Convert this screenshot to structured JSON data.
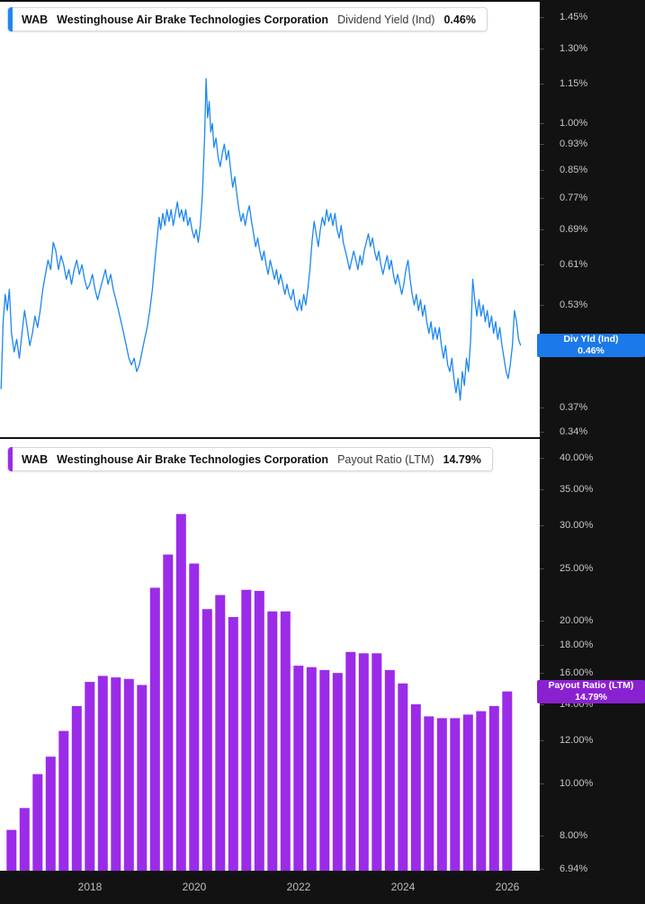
{
  "colors": {
    "background": "#121212",
    "panel": "#ffffff",
    "axis_text": "#c7c7c7",
    "x_axis_text": "#bdbdbd",
    "line_blue": "#1e87f0",
    "badge_blue": "#1b79ea",
    "bar_purple": "#9b2be8",
    "badge_purple": "#8a21d1",
    "chip_border": "#d8d8d8",
    "chip_text": "#111111"
  },
  "header_chips": {
    "dividend_yield": {
      "ticker": "WAB",
      "company": "Westinghouse Air Brake Technologies Corporation",
      "metric": "Dividend Yield (Ind)",
      "value": "0.46%"
    },
    "payout_ratio": {
      "ticker": "WAB",
      "company": "Westinghouse Air Brake Technologies Corporation",
      "metric": "Payout Ratio (LTM)",
      "value": "14.79%"
    }
  },
  "badges": {
    "dividend_yield": {
      "line1": "Div Yld (Ind)",
      "line2": "0.46%"
    },
    "payout_ratio": {
      "line1": "Payout Ratio (LTM)",
      "line2": "14.79%"
    }
  },
  "chart_data": [
    {
      "type": "line",
      "title": "WAB Westinghouse Air Brake Technologies Corporation Dividend Yield (Ind) 0.46%",
      "name": "Dividend Yield (Ind)",
      "unit": "%",
      "y_scale": "log",
      "current_value": 0.46,
      "y_ticks": [
        {
          "label": "1.45%",
          "v": 1.45
        },
        {
          "label": "1.30%",
          "v": 1.3
        },
        {
          "label": "1.15%",
          "v": 1.15
        },
        {
          "label": "1.00%",
          "v": 1.0
        },
        {
          "label": "0.93%",
          "v": 0.93
        },
        {
          "label": "0.85%",
          "v": 0.85
        },
        {
          "label": "0.77%",
          "v": 0.77
        },
        {
          "label": "0.69%",
          "v": 0.69
        },
        {
          "label": "0.61%",
          "v": 0.61
        },
        {
          "label": "0.53%",
          "v": 0.53
        },
        {
          "label": "0.37%",
          "v": 0.37
        },
        {
          "label": "0.34%",
          "v": 0.34
        }
      ],
      "x_ticks": [
        {
          "label": "2018",
          "t": 2018
        },
        {
          "label": "2020",
          "t": 2020
        },
        {
          "label": "2022",
          "t": 2022
        },
        {
          "label": "2024",
          "t": 2024
        },
        {
          "label": "2026",
          "t": 2026
        }
      ],
      "points": [
        [
          2016.3,
          0.395
        ],
        [
          2016.34,
          0.5
        ],
        [
          2016.38,
          0.55
        ],
        [
          2016.42,
          0.52
        ],
        [
          2016.46,
          0.56
        ],
        [
          2016.5,
          0.48
        ],
        [
          2016.55,
          0.45
        ],
        [
          2016.6,
          0.47
        ],
        [
          2016.65,
          0.44
        ],
        [
          2016.7,
          0.48
        ],
        [
          2016.75,
          0.52
        ],
        [
          2016.8,
          0.49
        ],
        [
          2016.85,
          0.46
        ],
        [
          2016.9,
          0.48
        ],
        [
          2016.95,
          0.51
        ],
        [
          2017.0,
          0.49
        ],
        [
          2017.05,
          0.52
        ],
        [
          2017.1,
          0.56
        ],
        [
          2017.15,
          0.59
        ],
        [
          2017.2,
          0.62
        ],
        [
          2017.25,
          0.6
        ],
        [
          2017.3,
          0.66
        ],
        [
          2017.35,
          0.64
        ],
        [
          2017.4,
          0.6
        ],
        [
          2017.45,
          0.63
        ],
        [
          2017.5,
          0.61
        ],
        [
          2017.55,
          0.58
        ],
        [
          2017.6,
          0.6
        ],
        [
          2017.65,
          0.57
        ],
        [
          2017.7,
          0.6
        ],
        [
          2017.75,
          0.62
        ],
        [
          2017.8,
          0.59
        ],
        [
          2017.85,
          0.61
        ],
        [
          2017.9,
          0.58
        ],
        [
          2017.95,
          0.56
        ],
        [
          2018.0,
          0.57
        ],
        [
          2018.05,
          0.59
        ],
        [
          2018.1,
          0.56
        ],
        [
          2018.15,
          0.54
        ],
        [
          2018.2,
          0.56
        ],
        [
          2018.25,
          0.58
        ],
        [
          2018.3,
          0.6
        ],
        [
          2018.35,
          0.57
        ],
        [
          2018.4,
          0.59
        ],
        [
          2018.45,
          0.56
        ],
        [
          2018.5,
          0.54
        ],
        [
          2018.55,
          0.52
        ],
        [
          2018.6,
          0.5
        ],
        [
          2018.65,
          0.48
        ],
        [
          2018.7,
          0.46
        ],
        [
          2018.75,
          0.44
        ],
        [
          2018.8,
          0.43
        ],
        [
          2018.85,
          0.44
        ],
        [
          2018.9,
          0.42
        ],
        [
          2018.95,
          0.43
        ],
        [
          2019.0,
          0.45
        ],
        [
          2019.05,
          0.47
        ],
        [
          2019.1,
          0.49
        ],
        [
          2019.15,
          0.52
        ],
        [
          2019.2,
          0.56
        ],
        [
          2019.25,
          0.62
        ],
        [
          2019.3,
          0.68
        ],
        [
          2019.33,
          0.72
        ],
        [
          2019.36,
          0.69
        ],
        [
          2019.4,
          0.73
        ],
        [
          2019.44,
          0.7
        ],
        [
          2019.48,
          0.74
        ],
        [
          2019.52,
          0.71
        ],
        [
          2019.56,
          0.74
        ],
        [
          2019.6,
          0.7
        ],
        [
          2019.64,
          0.73
        ],
        [
          2019.68,
          0.76
        ],
        [
          2019.72,
          0.72
        ],
        [
          2019.76,
          0.74
        ],
        [
          2019.8,
          0.71
        ],
        [
          2019.84,
          0.74
        ],
        [
          2019.88,
          0.7
        ],
        [
          2019.92,
          0.72
        ],
        [
          2019.96,
          0.69
        ],
        [
          2020.0,
          0.67
        ],
        [
          2020.04,
          0.69
        ],
        [
          2020.08,
          0.66
        ],
        [
          2020.12,
          0.7
        ],
        [
          2020.16,
          0.78
        ],
        [
          2020.2,
          0.95
        ],
        [
          2020.23,
          1.17
        ],
        [
          2020.26,
          1.02
        ],
        [
          2020.29,
          1.08
        ],
        [
          2020.32,
          0.97
        ],
        [
          2020.35,
          1.0
        ],
        [
          2020.38,
          0.92
        ],
        [
          2020.42,
          0.95
        ],
        [
          2020.46,
          0.89
        ],
        [
          2020.5,
          0.86
        ],
        [
          2020.54,
          0.9
        ],
        [
          2020.58,
          0.93
        ],
        [
          2020.62,
          0.88
        ],
        [
          2020.66,
          0.91
        ],
        [
          2020.7,
          0.85
        ],
        [
          2020.74,
          0.8
        ],
        [
          2020.78,
          0.83
        ],
        [
          2020.82,
          0.78
        ],
        [
          2020.86,
          0.74
        ],
        [
          2020.9,
          0.71
        ],
        [
          2020.94,
          0.73
        ],
        [
          2020.98,
          0.7
        ],
        [
          2021.02,
          0.73
        ],
        [
          2021.06,
          0.75
        ],
        [
          2021.1,
          0.71
        ],
        [
          2021.14,
          0.68
        ],
        [
          2021.18,
          0.65
        ],
        [
          2021.22,
          0.67
        ],
        [
          2021.26,
          0.64
        ],
        [
          2021.3,
          0.62
        ],
        [
          2021.34,
          0.64
        ],
        [
          2021.38,
          0.61
        ],
        [
          2021.42,
          0.59
        ],
        [
          2021.46,
          0.62
        ],
        [
          2021.5,
          0.6
        ],
        [
          2021.54,
          0.58
        ],
        [
          2021.58,
          0.6
        ],
        [
          2021.62,
          0.57
        ],
        [
          2021.66,
          0.59
        ],
        [
          2021.7,
          0.57
        ],
        [
          2021.74,
          0.55
        ],
        [
          2021.78,
          0.57
        ],
        [
          2021.82,
          0.55
        ],
        [
          2021.86,
          0.54
        ],
        [
          2021.9,
          0.56
        ],
        [
          2021.94,
          0.53
        ],
        [
          2021.98,
          0.52
        ],
        [
          2022.02,
          0.54
        ],
        [
          2022.06,
          0.52
        ],
        [
          2022.1,
          0.55
        ],
        [
          2022.14,
          0.53
        ],
        [
          2022.18,
          0.56
        ],
        [
          2022.22,
          0.6
        ],
        [
          2022.26,
          0.66
        ],
        [
          2022.3,
          0.71
        ],
        [
          2022.34,
          0.68
        ],
        [
          2022.38,
          0.65
        ],
        [
          2022.42,
          0.69
        ],
        [
          2022.46,
          0.72
        ],
        [
          2022.5,
          0.7
        ],
        [
          2022.54,
          0.74
        ],
        [
          2022.58,
          0.71
        ],
        [
          2022.62,
          0.73
        ],
        [
          2022.66,
          0.7
        ],
        [
          2022.7,
          0.73
        ],
        [
          2022.74,
          0.69
        ],
        [
          2022.78,
          0.67
        ],
        [
          2022.82,
          0.7
        ],
        [
          2022.86,
          0.66
        ],
        [
          2022.9,
          0.64
        ],
        [
          2022.94,
          0.62
        ],
        [
          2022.98,
          0.6
        ],
        [
          2023.02,
          0.62
        ],
        [
          2023.06,
          0.64
        ],
        [
          2023.1,
          0.62
        ],
        [
          2023.14,
          0.6
        ],
        [
          2023.18,
          0.63
        ],
        [
          2023.22,
          0.61
        ],
        [
          2023.26,
          0.64
        ],
        [
          2023.3,
          0.66
        ],
        [
          2023.34,
          0.68
        ],
        [
          2023.38,
          0.65
        ],
        [
          2023.42,
          0.67
        ],
        [
          2023.46,
          0.64
        ],
        [
          2023.5,
          0.62
        ],
        [
          2023.54,
          0.64
        ],
        [
          2023.58,
          0.61
        ],
        [
          2023.62,
          0.59
        ],
        [
          2023.66,
          0.61
        ],
        [
          2023.7,
          0.63
        ],
        [
          2023.74,
          0.6
        ],
        [
          2023.78,
          0.62
        ],
        [
          2023.82,
          0.59
        ],
        [
          2023.86,
          0.57
        ],
        [
          2023.9,
          0.59
        ],
        [
          2023.94,
          0.57
        ],
        [
          2023.98,
          0.55
        ],
        [
          2024.02,
          0.57
        ],
        [
          2024.06,
          0.6
        ],
        [
          2024.1,
          0.62
        ],
        [
          2024.14,
          0.58
        ],
        [
          2024.18,
          0.55
        ],
        [
          2024.22,
          0.53
        ],
        [
          2024.26,
          0.55
        ],
        [
          2024.3,
          0.52
        ],
        [
          2024.34,
          0.54
        ],
        [
          2024.38,
          0.51
        ],
        [
          2024.42,
          0.53
        ],
        [
          2024.46,
          0.5
        ],
        [
          2024.5,
          0.48
        ],
        [
          2024.54,
          0.5
        ],
        [
          2024.58,
          0.47
        ],
        [
          2024.62,
          0.49
        ],
        [
          2024.66,
          0.47
        ],
        [
          2024.7,
          0.49
        ],
        [
          2024.74,
          0.46
        ],
        [
          2024.78,
          0.44
        ],
        [
          2024.82,
          0.46
        ],
        [
          2024.86,
          0.43
        ],
        [
          2024.9,
          0.42
        ],
        [
          2024.94,
          0.44
        ],
        [
          2024.98,
          0.41
        ],
        [
          2025.02,
          0.39
        ],
        [
          2025.06,
          0.41
        ],
        [
          2025.1,
          0.38
        ],
        [
          2025.14,
          0.42
        ],
        [
          2025.18,
          0.4
        ],
        [
          2025.22,
          0.44
        ],
        [
          2025.26,
          0.42
        ],
        [
          2025.3,
          0.47
        ],
        [
          2025.34,
          0.58
        ],
        [
          2025.38,
          0.54
        ],
        [
          2025.42,
          0.51
        ],
        [
          2025.46,
          0.54
        ],
        [
          2025.5,
          0.51
        ],
        [
          2025.54,
          0.53
        ],
        [
          2025.58,
          0.5
        ],
        [
          2025.62,
          0.52
        ],
        [
          2025.66,
          0.49
        ],
        [
          2025.7,
          0.51
        ],
        [
          2025.74,
          0.48
        ],
        [
          2025.78,
          0.5
        ],
        [
          2025.82,
          0.47
        ],
        [
          2025.86,
          0.49
        ],
        [
          2025.9,
          0.46
        ],
        [
          2025.94,
          0.44
        ],
        [
          2025.98,
          0.42
        ],
        [
          2026.02,
          0.41
        ],
        [
          2026.06,
          0.43
        ],
        [
          2026.1,
          0.46
        ],
        [
          2026.14,
          0.52
        ],
        [
          2026.18,
          0.5
        ],
        [
          2026.22,
          0.47
        ],
        [
          2026.26,
          0.46
        ]
      ]
    },
    {
      "type": "bar",
      "title": "WAB Westinghouse Air Brake Technologies Corporation Payout Ratio (LTM) 14.79%",
      "name": "Payout Ratio (LTM)",
      "unit": "%",
      "y_scale": "log",
      "current_value": 14.79,
      "x_start": 2016.5,
      "x_step": 0.25,
      "y_ticks": [
        {
          "label": "40.00%",
          "v": 40
        },
        {
          "label": "35.00%",
          "v": 35
        },
        {
          "label": "30.00%",
          "v": 30
        },
        {
          "label": "25.00%",
          "v": 25
        },
        {
          "label": "20.00%",
          "v": 20
        },
        {
          "label": "18.00%",
          "v": 18
        },
        {
          "label": "16.00%",
          "v": 16
        },
        {
          "label": "14.00%",
          "v": 14
        },
        {
          "label": "12.00%",
          "v": 12
        },
        {
          "label": "10.00%",
          "v": 10
        },
        {
          "label": "8.00%",
          "v": 8
        },
        {
          "label": "6.94%",
          "v": 6.94
        }
      ],
      "values": [
        8.2,
        9.0,
        10.4,
        11.2,
        12.5,
        13.9,
        15.4,
        15.8,
        15.7,
        15.6,
        15.2,
        23.0,
        26.5,
        31.5,
        25.5,
        21.0,
        22.3,
        20.3,
        22.8,
        22.7,
        20.8,
        20.8,
        16.5,
        16.4,
        16.2,
        16.0,
        17.5,
        17.4,
        17.4,
        16.2,
        15.3,
        14.0,
        13.3,
        13.2,
        13.2,
        13.4,
        13.6,
        13.9,
        14.79
      ]
    }
  ]
}
